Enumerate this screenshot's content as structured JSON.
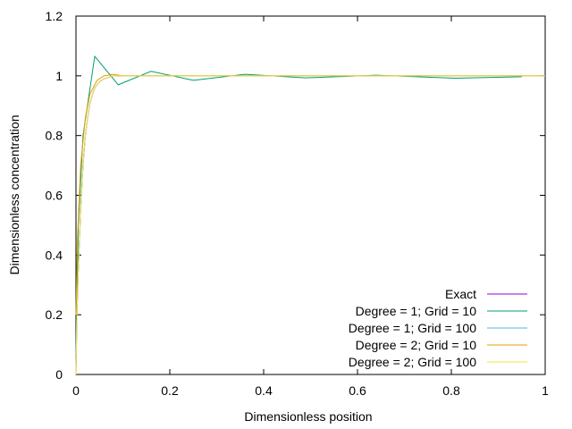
{
  "chart_data": {
    "type": "line",
    "title": "",
    "xlabel": "Dimensionless position",
    "ylabel": "Dimensionless concentration",
    "xlim": [
      0,
      1
    ],
    "ylim": [
      0,
      1.2
    ],
    "x_ticks": [
      0,
      0.2,
      0.4,
      0.6,
      0.8,
      1
    ],
    "x_tick_labels": [
      "0",
      "0.2",
      "0.4",
      "0.6",
      "0.8",
      "1"
    ],
    "y_ticks": [
      0,
      0.2,
      0.4,
      0.6,
      0.8,
      1,
      1.2
    ],
    "y_tick_labels": [
      "0",
      "0.2",
      "0.4",
      "0.6",
      "0.8",
      "1",
      "1.2"
    ],
    "grid": false,
    "legend_position": "bottom-right",
    "series": [
      {
        "name": "Exact",
        "color": "#9400d3",
        "x": [
          0,
          0.002,
          0.005,
          0.01,
          0.015,
          0.02,
          0.025,
          0.03,
          0.04,
          0.05,
          0.06,
          0.08,
          0.1,
          0.15,
          0.2,
          0.4,
          0.6,
          0.8,
          1
        ],
        "y": [
          0,
          0.2,
          0.35,
          0.55,
          0.7,
          0.8,
          0.86,
          0.91,
          0.96,
          0.98,
          0.99,
          1,
          1,
          1,
          1,
          1,
          1,
          1,
          1
        ]
      },
      {
        "name": "Degree = 1; Grid = 10",
        "color": "#009e73",
        "x": [
          0,
          0.005,
          0.015,
          0.04,
          0.09,
          0.16,
          0.25,
          0.36,
          0.49,
          0.64,
          0.81,
          0.95
        ],
        "y": [
          0.07,
          0.5,
          0.8,
          1.065,
          0.97,
          1.015,
          0.985,
          1.005,
          0.993,
          1.002,
          0.992,
          0.997
        ]
      },
      {
        "name": "Degree = 1; Grid = 100",
        "color": "#56b4e9",
        "x": [
          0,
          0.002,
          0.005,
          0.01,
          0.015,
          0.02,
          0.025,
          0.03,
          0.04,
          0.05,
          0.06,
          0.08,
          0.1,
          0.15,
          0.2,
          0.4,
          0.6,
          0.8,
          1
        ],
        "y": [
          0.02,
          0.2,
          0.35,
          0.55,
          0.7,
          0.8,
          0.86,
          0.91,
          0.96,
          0.98,
          0.99,
          1,
          1,
          1,
          1,
          1,
          1,
          1,
          1
        ]
      },
      {
        "name": "Degree = 2; Grid = 10",
        "color": "#e69f00",
        "x": [
          0,
          0.003,
          0.01,
          0.02,
          0.03,
          0.045,
          0.06,
          0.08,
          0.1,
          0.15,
          0.2,
          0.3,
          0.4,
          0.6,
          0.8,
          1
        ],
        "y": [
          0.2,
          0.45,
          0.7,
          0.86,
          0.94,
          0.985,
          1.0,
          1.005,
          1.0,
          1.0,
          1.0,
          1.0,
          1.0,
          1.0,
          1.0,
          1.0
        ]
      },
      {
        "name": "Degree = 2; Grid = 100",
        "color": "#f0e442",
        "x": [
          0,
          0.002,
          0.005,
          0.01,
          0.015,
          0.02,
          0.025,
          0.03,
          0.04,
          0.05,
          0.06,
          0.08,
          0.1,
          0.15,
          0.2,
          0.4,
          0.6,
          0.8,
          1
        ],
        "y": [
          0,
          0.2,
          0.35,
          0.55,
          0.7,
          0.8,
          0.86,
          0.91,
          0.96,
          0.98,
          0.99,
          1,
          1,
          1,
          1,
          1,
          1,
          1,
          1
        ]
      }
    ]
  }
}
